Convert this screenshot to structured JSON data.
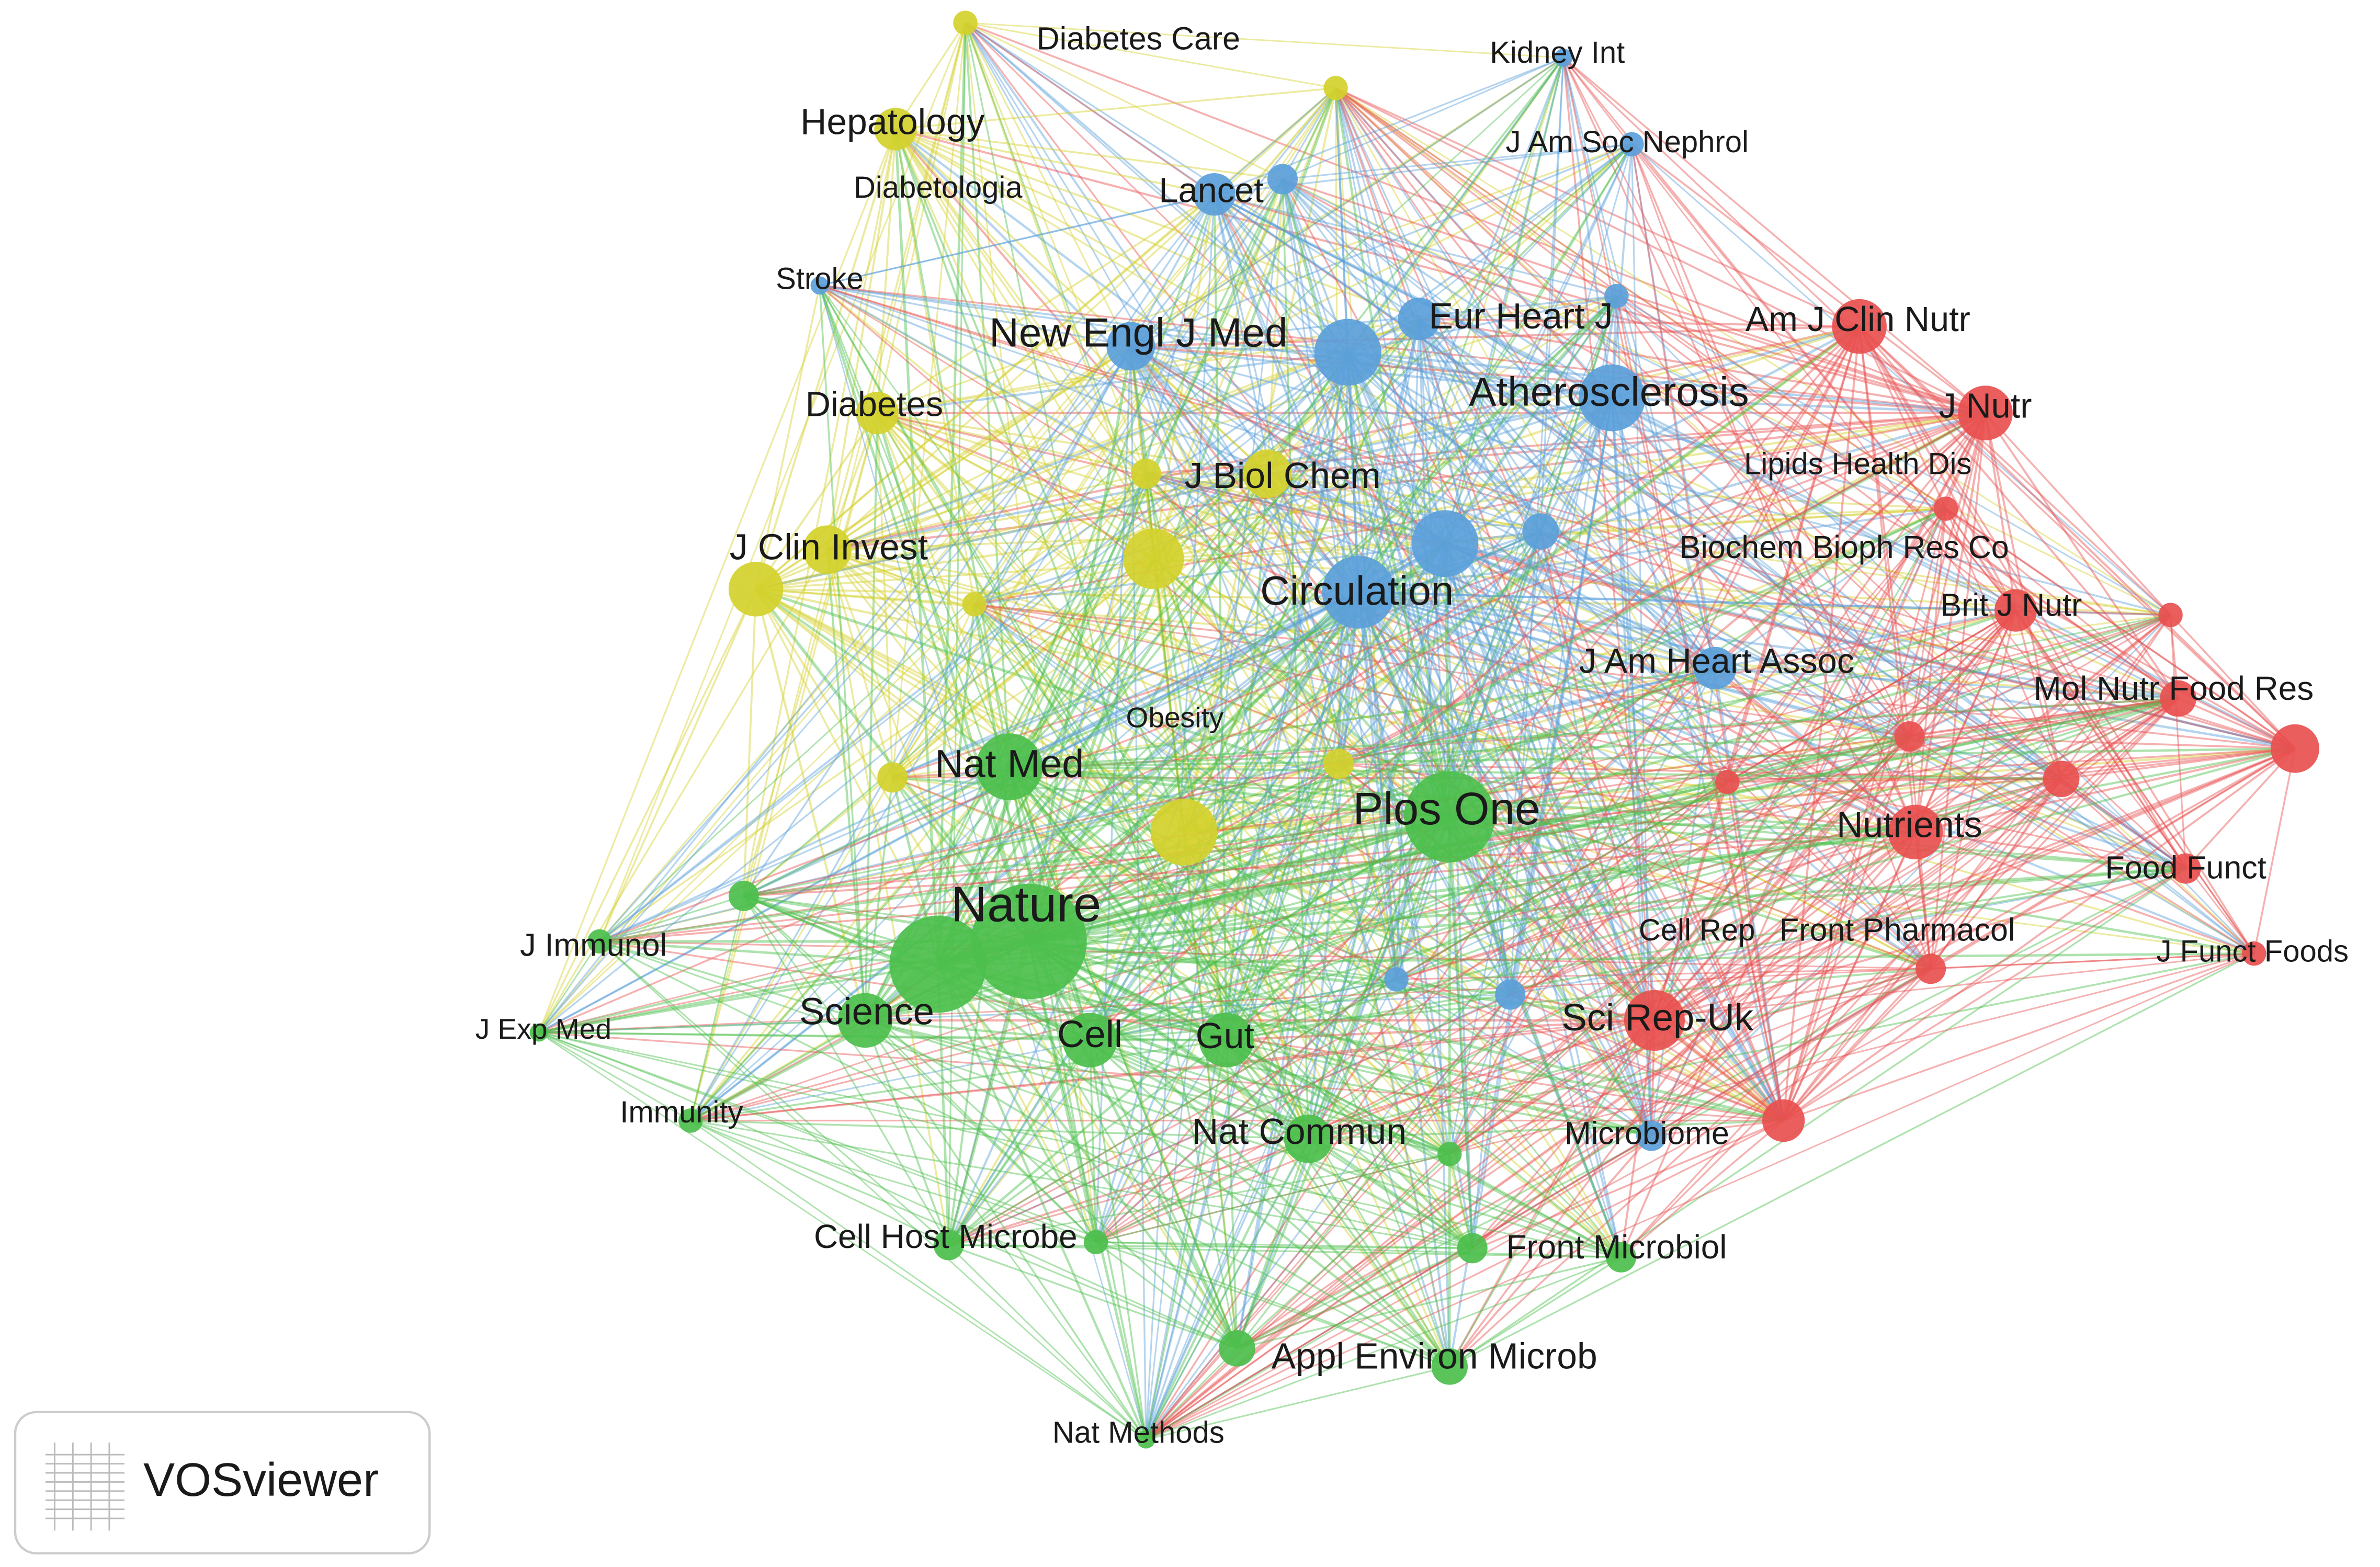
{
  "nodes": [
    {
      "label": "Diabetes Care"
    },
    {
      "label": "Hepatology"
    },
    {
      "label": "Diabetologia"
    },
    {
      "label": "Diabetes"
    },
    {
      "label": "J Biol Chem"
    },
    {
      "label": "J Clin Invest"
    },
    {
      "label": "Obesity"
    },
    {
      "label": "Kidney Int"
    },
    {
      "label": "J Am Soc Nephrol"
    },
    {
      "label": "Lancet"
    },
    {
      "label": "Stroke"
    },
    {
      "label": "New Engl J Med"
    },
    {
      "label": "Eur Heart J"
    },
    {
      "label": "Atherosclerosis"
    },
    {
      "label": "Circulation"
    },
    {
      "label": "J Am Heart Assoc"
    },
    {
      "label": "Microbiome"
    },
    {
      "label": "Am J Clin Nutr"
    },
    {
      "label": "J Nutr"
    },
    {
      "label": "Lipids Health Dis"
    },
    {
      "label": "Biochem Bioph Res Co"
    },
    {
      "label": "Brit J Nutr"
    },
    {
      "label": "Mol Nutr Food Res"
    },
    {
      "label": "Nutrients"
    },
    {
      "label": "Food Funct"
    },
    {
      "label": "J Funct Foods"
    },
    {
      "label": "Cell Rep"
    },
    {
      "label": "Front Pharmacol"
    },
    {
      "label": "Sci Rep-Uk"
    },
    {
      "label": "Plos One"
    },
    {
      "label": "Nat Med"
    },
    {
      "label": "Nature"
    },
    {
      "label": "J Immunol"
    },
    {
      "label": "J Exp Med"
    },
    {
      "label": "Science"
    },
    {
      "label": "Cell"
    },
    {
      "label": "Gut"
    },
    {
      "label": "Immunity"
    },
    {
      "label": "Nat Commun"
    },
    {
      "label": "Cell Host Microbe"
    },
    {
      "label": "Front Microbiol"
    },
    {
      "label": "Appl Environ Microb"
    },
    {
      "label": "Nat Methods"
    }
  ],
  "logo": {
    "text": "VOSviewer"
  }
}
